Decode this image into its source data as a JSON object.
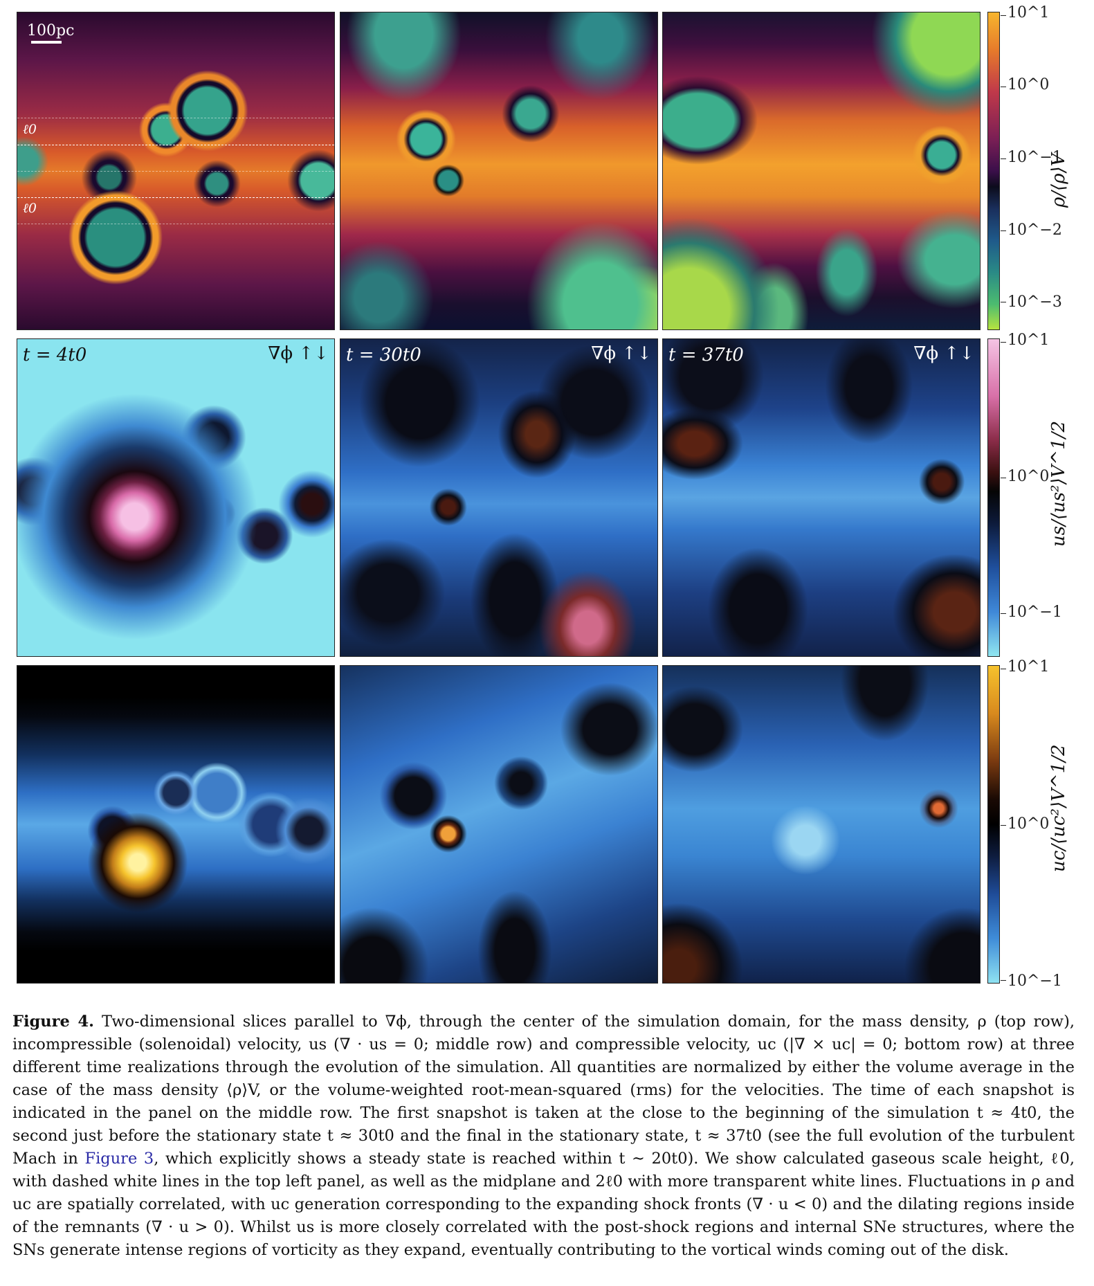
{
  "figure": {
    "scale_bar": "100pc",
    "scale_height_label": "ℓ0",
    "gradient_label": "∇ϕ ↑↓",
    "time_labels": [
      "t = 4t0",
      "t = 30t0",
      "t = 37t0"
    ],
    "colorbars": [
      {
        "title": "ρ/⟨ρ⟩V",
        "ticks": [
          "10^1",
          "10^0",
          "10^−1",
          "10^−2",
          "10^−3"
        ]
      },
      {
        "title": "us/⟨us²⟩V^1/2",
        "ticks": [
          "10^1",
          "10^0",
          "10^−1"
        ]
      },
      {
        "title": "uc/⟨uc²⟩V^1/2",
        "ticks": [
          "10^1",
          "10^0",
          "10^−1"
        ]
      }
    ]
  },
  "caption": {
    "label": "Figure 4.",
    "seg1": "Two-dimensional slices parallel to ∇ϕ, through the center of the simulation domain, for the mass density, ρ (top row), incompressible (solenoidal) velocity, us (∇ · us = 0; middle row) and compressible velocity, uc (|∇ × uc| = 0; bottom row) at three different time realizations through the evolution of the simulation. All quantities are normalized by either the volume average in the case of the mass density ⟨ρ⟩V, or the volume-weighted root-mean-squared (rms) for the velocities. The time of each snapshot is indicated in the panel on the middle row. The first snapshot is taken at the close to the beginning of the simulation t ≈ 4t0, the second just before the stationary state t ≈ 30t0 and the final in the stationary state, t ≈ 37t0 (see the full evolution of the turbulent Mach in",
    "figref": "Figure 3",
    "seg2": ", which explicitly shows a steady state is reached within t ∼ 20t0). We show calculated gaseous scale height, ℓ0, with dashed white lines in the top left panel, as well as the midplane and 2ℓ0 with more transparent white lines. Fluctuations in ρ and uc are spatially correlated, with uc generation corresponding to the expanding shock fronts (∇ · u < 0) and the dilating regions inside of the remnants (∇ · u > 0). Whilst us is more closely correlated with the post-shock regions and internal SNe structures, where the SNs generate intense regions of vorticity as they expand, eventually contributing to the vortical winds coming out of the disk."
  }
}
